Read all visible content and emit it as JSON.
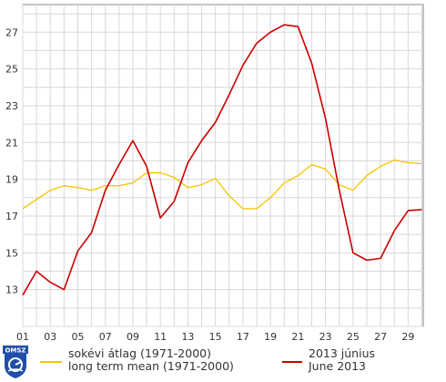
{
  "chart_data": {
    "type": "line",
    "x": [
      1,
      2,
      3,
      4,
      5,
      6,
      7,
      8,
      9,
      10,
      11,
      12,
      13,
      14,
      15,
      16,
      17,
      18,
      19,
      20,
      21,
      22,
      23,
      24,
      25,
      26,
      27,
      28,
      29,
      30
    ],
    "xticks": [
      "01",
      "03",
      "05",
      "07",
      "09",
      "11",
      "13",
      "15",
      "17",
      "19",
      "21",
      "23",
      "25",
      "27",
      "29"
    ],
    "xtick_values": [
      1,
      3,
      5,
      7,
      9,
      11,
      13,
      15,
      17,
      19,
      21,
      23,
      25,
      27,
      29
    ],
    "yticks": [
      13,
      15,
      17,
      19,
      21,
      23,
      25,
      27
    ],
    "ylim": [
      11.0,
      28.5
    ],
    "xlim": [
      1,
      30.1
    ],
    "grid": true,
    "legend_position": "bottom",
    "series": [
      {
        "name_lines": [
          "sokévi átlag (1971-2000)",
          "long term mean (1971-2000)"
        ],
        "color": "#f5c400",
        "values": [
          17.4,
          17.9,
          18.4,
          18.65,
          18.55,
          18.4,
          18.65,
          18.65,
          18.8,
          19.35,
          19.35,
          19.1,
          18.55,
          18.7,
          19.05,
          18.1,
          17.4,
          17.4,
          18.0,
          18.8,
          19.2,
          19.8,
          19.55,
          18.7,
          18.4,
          19.2,
          19.7,
          20.05,
          19.9,
          19.85
        ]
      },
      {
        "name_lines": [
          "2013 június",
          "June 2013"
        ],
        "color": "#cc0000",
        "values": [
          12.7,
          14.0,
          13.4,
          13.0,
          15.1,
          16.1,
          18.4,
          19.8,
          21.1,
          19.7,
          16.9,
          17.8,
          19.9,
          21.1,
          22.1,
          23.6,
          25.2,
          26.4,
          27.0,
          27.4,
          27.3,
          25.3,
          22.3,
          18.4,
          15.0,
          14.6,
          14.7,
          16.2,
          17.3,
          17.35
        ]
      }
    ]
  },
  "logo": {
    "text": "OMSZ"
  },
  "colors": {
    "grid": "#d8d8d8",
    "axis": "#888888",
    "background": "#ffffff"
  }
}
